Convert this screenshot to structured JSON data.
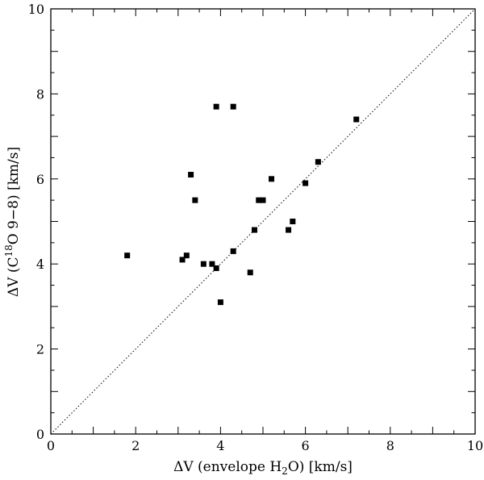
{
  "chart_data": {
    "type": "scatter",
    "xlabel_parts": {
      "pre": "ΔV (envelope H",
      "sub": "2",
      "post": "O) [km/s]"
    },
    "ylabel_parts": {
      "pre": "ΔV (C",
      "sup": "18",
      "post": "O 9−8) [km/s]"
    },
    "xlim": [
      0,
      10
    ],
    "ylim": [
      0,
      10
    ],
    "xticks": [
      "0",
      "2",
      "4",
      "6",
      "8",
      "10"
    ],
    "yticks": [
      "0",
      "2",
      "4",
      "6",
      "8",
      "10"
    ],
    "grid": false,
    "reference_line": {
      "style": "dotted",
      "from": [
        0,
        0
      ],
      "to": [
        10,
        10
      ]
    },
    "points": [
      {
        "x": 1.8,
        "y": 4.2
      },
      {
        "x": 3.1,
        "y": 4.1
      },
      {
        "x": 3.2,
        "y": 4.2
      },
      {
        "x": 3.3,
        "y": 6.1
      },
      {
        "x": 3.4,
        "y": 5.5
      },
      {
        "x": 3.6,
        "y": 4.0
      },
      {
        "x": 3.8,
        "y": 4.0
      },
      {
        "x": 3.9,
        "y": 3.9
      },
      {
        "x": 3.9,
        "y": 7.7
      },
      {
        "x": 4.0,
        "y": 3.1
      },
      {
        "x": 4.3,
        "y": 7.7
      },
      {
        "x": 4.3,
        "y": 4.3
      },
      {
        "x": 4.7,
        "y": 3.8
      },
      {
        "x": 4.8,
        "y": 4.8
      },
      {
        "x": 4.9,
        "y": 5.5
      },
      {
        "x": 5.0,
        "y": 5.5
      },
      {
        "x": 5.2,
        "y": 6.0
      },
      {
        "x": 5.6,
        "y": 4.8
      },
      {
        "x": 5.7,
        "y": 5.0
      },
      {
        "x": 6.0,
        "y": 5.9
      },
      {
        "x": 6.3,
        "y": 6.4
      },
      {
        "x": 7.2,
        "y": 7.4
      }
    ]
  }
}
